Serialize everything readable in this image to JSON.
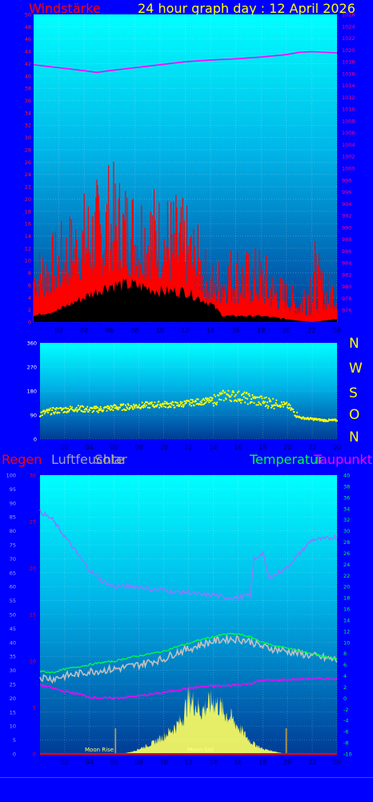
{
  "header": {
    "wind_label": "Windstärke",
    "title": "24 hour graph day : 12 April 2026"
  },
  "colors": {
    "background": "#0000ff",
    "wind": "#ff0000",
    "gust_fill": "#000000",
    "pressure": "#ff00ff",
    "direction": "#ffff00",
    "humidity": "#8080ff",
    "temperature": "#00ff40",
    "temp_raw": "#c0c0c0",
    "dewpoint": "#ff00ff",
    "solar": "#ffff60",
    "rain": "#ff0000",
    "left_axis": "#ff2020",
    "right_axis": "#ff0080",
    "x_axis": "#000060"
  },
  "legend_lower": {
    "rain": "Regen",
    "humidity": "Luftfeuchte",
    "solar": "Solar",
    "temperature": "Temperatur",
    "dewpoint": "Taupunkt"
  },
  "compass": [
    "N",
    "W",
    "S",
    "O",
    "N"
  ],
  "annotations": {
    "moon_rise": "Moon Rise",
    "moon_set": "Moon Set"
  },
  "chart_data": [
    {
      "type": "area",
      "name_on_chart": "Windstärke",
      "x_ticks": [
        "02",
        "04",
        "06",
        "08",
        "10",
        "12",
        "14",
        "16",
        "18",
        "20",
        "22",
        "00"
      ],
      "x_hours": [
        2,
        4,
        6,
        8,
        10,
        12,
        14,
        16,
        18,
        20,
        22,
        24
      ],
      "x_range": [
        0,
        24
      ],
      "left_axis": {
        "range": [
          0,
          50
        ],
        "ticks": [
          0,
          2,
          4,
          6,
          8,
          10,
          12,
          14,
          16,
          18,
          20,
          22,
          24,
          26,
          28,
          30,
          32,
          34,
          36,
          38,
          40,
          42,
          44,
          46,
          48,
          50
        ]
      },
      "right_axis": {
        "range": [
          974,
          1026
        ],
        "ticks": [
          976,
          978,
          980,
          982,
          984,
          986,
          988,
          990,
          992,
          994,
          996,
          998,
          1000,
          1002,
          1004,
          1006,
          1008,
          1010,
          1012,
          1014,
          1016,
          1018,
          1020,
          1022,
          1024,
          1026
        ]
      },
      "wind_peaks": [
        [
          0,
          12
        ],
        [
          1,
          14
        ],
        [
          2,
          16
        ],
        [
          3,
          19
        ],
        [
          4,
          22
        ],
        [
          5,
          24
        ],
        [
          6,
          27
        ],
        [
          7,
          25
        ],
        [
          8,
          24
        ],
        [
          9,
          25
        ],
        [
          10,
          22
        ],
        [
          11,
          22
        ],
        [
          12,
          20
        ],
        [
          13,
          16
        ],
        [
          14,
          10
        ],
        [
          15,
          12
        ],
        [
          16,
          14
        ],
        [
          17,
          12
        ],
        [
          18,
          13
        ],
        [
          19,
          9
        ],
        [
          20,
          7
        ],
        [
          21,
          5
        ],
        [
          22,
          16
        ],
        [
          23,
          8
        ],
        [
          24,
          9
        ]
      ],
      "wind_base": [
        [
          0,
          4
        ],
        [
          1,
          4
        ],
        [
          2,
          5
        ],
        [
          3,
          6
        ],
        [
          4,
          7
        ],
        [
          5,
          7
        ],
        [
          6,
          8
        ],
        [
          7,
          8
        ],
        [
          8,
          7
        ],
        [
          9,
          7
        ],
        [
          10,
          7
        ],
        [
          11,
          6
        ],
        [
          12,
          6
        ],
        [
          13,
          5
        ],
        [
          14,
          3
        ],
        [
          15,
          3
        ],
        [
          16,
          3
        ],
        [
          17,
          3
        ],
        [
          18,
          3
        ],
        [
          19,
          2
        ],
        [
          20,
          2
        ],
        [
          21,
          1
        ],
        [
          22,
          1
        ],
        [
          23,
          2
        ],
        [
          24,
          2
        ]
      ],
      "gust_black": [
        [
          0,
          1
        ],
        [
          2,
          2
        ],
        [
          4,
          4
        ],
        [
          5,
          5
        ],
        [
          6,
          6
        ],
        [
          8,
          6
        ],
        [
          10,
          5
        ],
        [
          12,
          5
        ],
        [
          14,
          3
        ],
        [
          15,
          1
        ],
        [
          16,
          1
        ],
        [
          18,
          1
        ],
        [
          20,
          0.5
        ],
        [
          22,
          0
        ],
        [
          24,
          0.5
        ]
      ],
      "pressure": [
        [
          0,
          1017.5
        ],
        [
          2,
          1017
        ],
        [
          4,
          1016.5
        ],
        [
          5,
          1016.2
        ],
        [
          6,
          1016.5
        ],
        [
          8,
          1017
        ],
        [
          10,
          1017.5
        ],
        [
          12,
          1018
        ],
        [
          14,
          1018.3
        ],
        [
          16,
          1018.5
        ],
        [
          18,
          1018.8
        ],
        [
          20,
          1019.2
        ],
        [
          21,
          1019.6
        ],
        [
          22,
          1019.7
        ],
        [
          24,
          1019.5
        ]
      ]
    },
    {
      "type": "scatter",
      "name_on_chart": "",
      "x_ticks": [
        "02",
        "04",
        "06",
        "08",
        "10",
        "12",
        "14",
        "16",
        "18",
        "20",
        "22",
        "00"
      ],
      "x_range": [
        0,
        24
      ],
      "y_axis": {
        "range": [
          0,
          360
        ],
        "ticks": [
          0,
          90,
          180,
          270,
          360
        ]
      },
      "direction": [
        [
          0,
          95
        ],
        [
          1,
          105
        ],
        [
          2,
          110
        ],
        [
          3,
          115
        ],
        [
          4,
          110
        ],
        [
          5,
          112
        ],
        [
          6,
          118
        ],
        [
          7,
          120
        ],
        [
          8,
          125
        ],
        [
          9,
          128
        ],
        [
          10,
          130
        ],
        [
          11,
          128
        ],
        [
          12,
          135
        ],
        [
          13,
          140
        ],
        [
          14,
          145
        ],
        [
          15,
          165
        ],
        [
          16,
          160
        ],
        [
          17,
          150
        ],
        [
          18,
          140
        ],
        [
          19,
          135
        ],
        [
          20,
          125
        ],
        [
          21,
          80
        ],
        [
          22,
          75
        ],
        [
          23,
          70
        ],
        [
          24,
          70
        ]
      ]
    },
    {
      "type": "line",
      "name_on_chart": "",
      "x_ticks": [
        "02",
        "04",
        "06",
        "08",
        "10",
        "12",
        "14",
        "16",
        "18",
        "20",
        "22",
        "00"
      ],
      "x_range": [
        0,
        24
      ],
      "humidity_axis": {
        "range": [
          0,
          100
        ],
        "ticks": [
          0,
          5,
          10,
          15,
          20,
          25,
          30,
          35,
          40,
          45,
          50,
          55,
          60,
          65,
          70,
          75,
          80,
          85,
          90,
          95,
          100
        ]
      },
      "rain_axis": {
        "range": [
          0,
          30
        ],
        "ticks": [
          0,
          5,
          10,
          15,
          20,
          25,
          30
        ]
      },
      "temp_axis": {
        "range": [
          -10,
          40
        ],
        "ticks": [
          -10,
          -8,
          -6,
          -4,
          -2,
          0,
          2,
          4,
          6,
          8,
          10,
          12,
          14,
          16,
          18,
          20,
          22,
          24,
          26,
          28,
          30,
          32,
          34,
          36,
          38,
          40
        ]
      },
      "humidity": [
        [
          0,
          87
        ],
        [
          1,
          84
        ],
        [
          2,
          78
        ],
        [
          3,
          72
        ],
        [
          4,
          66
        ],
        [
          5,
          62
        ],
        [
          6,
          60
        ],
        [
          7,
          60
        ],
        [
          8,
          60
        ],
        [
          9,
          59
        ],
        [
          10,
          59
        ],
        [
          11,
          58
        ],
        [
          12,
          58
        ],
        [
          13,
          57
        ],
        [
          14,
          57
        ],
        [
          15,
          56
        ],
        [
          16,
          56
        ],
        [
          17,
          57
        ],
        [
          17.3,
          70
        ],
        [
          18,
          72
        ],
        [
          18.5,
          63
        ],
        [
          20,
          67
        ],
        [
          21,
          72
        ],
        [
          22,
          77
        ],
        [
          23,
          77
        ],
        [
          24,
          78
        ]
      ],
      "temperature": [
        [
          0,
          4.8
        ],
        [
          1,
          4.6
        ],
        [
          2,
          5.2
        ],
        [
          3,
          5.6
        ],
        [
          4,
          6.0
        ],
        [
          5,
          6.4
        ],
        [
          6,
          6.6
        ],
        [
          7,
          7.2
        ],
        [
          8,
          7.6
        ],
        [
          9,
          8.0
        ],
        [
          10,
          8.4
        ],
        [
          11,
          9.2
        ],
        [
          12,
          9.8
        ],
        [
          13,
          10.5
        ],
        [
          14,
          11
        ],
        [
          15,
          11.5
        ],
        [
          16,
          11.5
        ],
        [
          17,
          11.0
        ],
        [
          18,
          10.0
        ],
        [
          19,
          9.4
        ],
        [
          20,
          9.0
        ],
        [
          21,
          8.4
        ],
        [
          22,
          8.0
        ],
        [
          23,
          7.5
        ],
        [
          24,
          7.0
        ]
      ],
      "temperature_raw": [
        [
          0,
          3.8
        ],
        [
          1,
          3.5
        ],
        [
          2,
          4.0
        ],
        [
          3,
          4.3
        ],
        [
          4,
          4.8
        ],
        [
          5,
          5.0
        ],
        [
          6,
          5.2
        ],
        [
          7,
          5.6
        ],
        [
          8,
          6.0
        ],
        [
          9,
          6.6
        ],
        [
          10,
          7.0
        ],
        [
          11,
          8.2
        ],
        [
          12,
          8.8
        ],
        [
          13,
          9.6
        ],
        [
          14,
          10.2
        ],
        [
          15,
          10.6
        ],
        [
          16,
          10.6
        ],
        [
          17,
          10.2
        ],
        [
          18,
          9.2
        ],
        [
          19,
          8.8
        ],
        [
          20,
          8.4
        ],
        [
          21,
          8.0
        ],
        [
          22,
          7.6
        ],
        [
          23,
          7.2
        ],
        [
          24,
          6.8
        ]
      ],
      "dewpoint": [
        [
          0,
          2.4
        ],
        [
          1,
          1.8
        ],
        [
          2,
          1.2
        ],
        [
          3,
          0.8
        ],
        [
          4,
          0.2
        ],
        [
          5,
          0.0
        ],
        [
          6,
          0.0
        ],
        [
          7,
          0.2
        ],
        [
          8,
          0.4
        ],
        [
          9,
          0.7
        ],
        [
          10,
          1.0
        ],
        [
          11,
          1.4
        ],
        [
          12,
          1.8
        ],
        [
          13,
          2.0
        ],
        [
          14,
          2.2
        ],
        [
          15,
          2.2
        ],
        [
          16,
          2.4
        ],
        [
          17,
          2.6
        ],
        [
          18,
          3.2
        ],
        [
          19,
          3.2
        ],
        [
          20,
          3.3
        ],
        [
          21,
          3.4
        ],
        [
          22,
          3.5
        ],
        [
          23,
          3.5
        ],
        [
          24,
          3.5
        ]
      ],
      "solar_pct": [
        [
          6.6,
          0
        ],
        [
          7.5,
          1
        ],
        [
          8,
          2
        ],
        [
          9,
          4
        ],
        [
          10,
          7
        ],
        [
          10.5,
          9
        ],
        [
          11,
          11
        ],
        [
          11.5,
          14
        ],
        [
          12,
          22
        ],
        [
          12.5,
          20
        ],
        [
          13,
          17
        ],
        [
          13.5,
          19
        ],
        [
          14,
          21
        ],
        [
          14.5,
          19
        ],
        [
          15,
          16
        ],
        [
          15.5,
          14
        ],
        [
          16,
          11
        ],
        [
          16.5,
          8
        ],
        [
          17,
          5
        ],
        [
          18,
          2
        ],
        [
          19,
          1
        ],
        [
          19.8,
          0
        ]
      ],
      "rain": [
        [
          0,
          0
        ],
        [
          24,
          0
        ]
      ],
      "moon_markers": [
        6.1,
        19.9
      ]
    }
  ]
}
